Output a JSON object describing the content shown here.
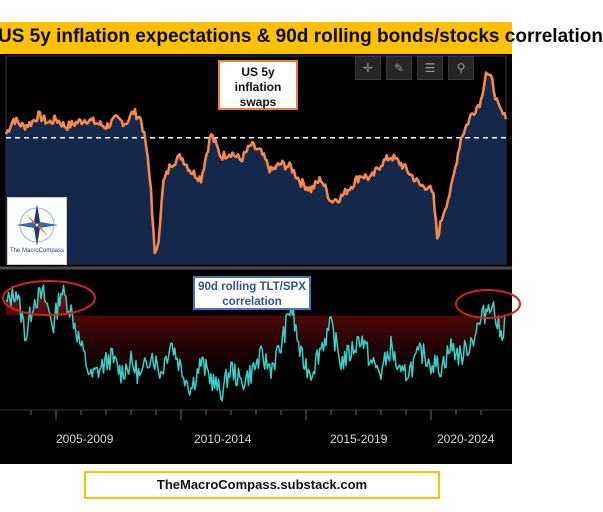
{
  "title": "US 5y inflation expectations & 90d rolling bonds/stocks correlation",
  "callouts": {
    "top": [
      "US 5y",
      "inflation",
      "swaps"
    ],
    "bottom": [
      "90d rolling TLT/SPX",
      "correlation"
    ]
  },
  "toolbar": {
    "icons": [
      "crosshair-icon",
      "pencil-icon",
      "table-icon",
      "zoom-icon"
    ]
  },
  "logo": {
    "text": "The MacroCompass"
  },
  "footer": "TheMacroCompass.substack.com",
  "colors": {
    "title_bg": "#ffc000",
    "inflation_line": "#f4894a",
    "inflation_fill": "#13284a",
    "correlation_line": "#35d0c8",
    "correlation_fill_top": "#8c1010",
    "highlight_circle": "#d62020",
    "callout_top_border": "#ed7d31",
    "callout_bottom_border": "#4472c4",
    "footer_border": "#ffc000"
  },
  "chart_data": [
    {
      "type": "area",
      "series": [
        {
          "name": "US 5y inflation swaps",
          "x": [
            2003.0,
            2003.3,
            2003.7,
            2004.0,
            2004.3,
            2004.7,
            2005.0,
            2005.4,
            2005.8,
            2006.2,
            2006.6,
            2007.0,
            2007.4,
            2007.8,
            2008.1,
            2008.4,
            2008.6,
            2008.8,
            2008.95,
            2009.1,
            2009.3,
            2009.6,
            2010.0,
            2010.4,
            2010.8,
            2011.2,
            2011.6,
            2012.0,
            2012.4,
            2012.8,
            2013.2,
            2013.6,
            2014.0,
            2014.4,
            2014.8,
            2015.2,
            2015.6,
            2016.0,
            2016.4,
            2016.8,
            2017.2,
            2017.6,
            2018.0,
            2018.4,
            2018.8,
            2019.2,
            2019.6,
            2019.9,
            2020.1,
            2020.25,
            2020.5,
            2020.8,
            2021.2,
            2021.6,
            2022.0,
            2022.2,
            2022.45,
            2022.7,
            2023.0
          ],
          "values": [
            2.35,
            2.55,
            2.45,
            2.5,
            2.6,
            2.5,
            2.55,
            2.45,
            2.5,
            2.55,
            2.5,
            2.45,
            2.55,
            2.5,
            2.65,
            2.55,
            2.2,
            1.6,
            0.7,
            0.95,
            1.7,
            1.95,
            2.05,
            1.85,
            1.75,
            2.35,
            2.05,
            2.1,
            2.0,
            2.2,
            2.1,
            1.85,
            1.95,
            1.9,
            1.7,
            1.6,
            1.75,
            1.45,
            1.5,
            1.65,
            1.8,
            1.75,
            1.95,
            2.05,
            1.95,
            1.8,
            1.65,
            1.65,
            1.5,
            0.95,
            1.3,
            1.6,
            2.3,
            2.6,
            2.8,
            3.2,
            3.05,
            2.7,
            2.55
          ]
        }
      ],
      "reference_line": 2.3,
      "ylim": [
        0.6,
        3.4
      ]
    },
    {
      "type": "area",
      "series": [
        {
          "name": "90d rolling TLT/SPX correlation",
          "x": [
            2003.0,
            2003.4,
            2003.8,
            2004.1,
            2004.5,
            2004.9,
            2005.2,
            2005.6,
            2006.0,
            2006.4,
            2006.8,
            2007.2,
            2007.6,
            2008.0,
            2008.4,
            2008.8,
            2009.2,
            2009.6,
            2010.0,
            2010.4,
            2010.8,
            2011.2,
            2011.6,
            2012.0,
            2012.4,
            2012.8,
            2013.2,
            2013.6,
            2014.0,
            2014.4,
            2014.8,
            2015.2,
            2015.6,
            2016.0,
            2016.4,
            2016.8,
            2017.2,
            2017.6,
            2018.0,
            2018.4,
            2018.8,
            2019.2,
            2019.6,
            2020.0,
            2020.4,
            2020.8,
            2021.2,
            2021.6,
            2022.0,
            2022.4,
            2022.8,
            2023.0
          ],
          "values": [
            0.1,
            0.25,
            -0.2,
            0.15,
            0.2,
            -0.1,
            0.25,
            0.05,
            -0.3,
            -0.6,
            -0.5,
            -0.4,
            -0.55,
            -0.45,
            -0.6,
            -0.35,
            -0.55,
            -0.25,
            -0.5,
            -0.7,
            -0.45,
            -0.6,
            -0.75,
            -0.5,
            -0.65,
            -0.55,
            -0.4,
            -0.5,
            -0.3,
            0.1,
            -0.4,
            -0.55,
            -0.3,
            -0.1,
            -0.45,
            -0.35,
            -0.2,
            -0.45,
            -0.55,
            -0.3,
            -0.6,
            -0.5,
            -0.35,
            -0.45,
            -0.5,
            -0.3,
            -0.4,
            -0.25,
            -0.05,
            0.15,
            -0.2,
            0.0
          ]
        }
      ],
      "fill_level": 0.0,
      "ylim": [
        -0.85,
        0.4
      ]
    }
  ],
  "x_axis": {
    "labels": [
      "2005-2009",
      "2010-2014",
      "2015-2019",
      "2020-2024"
    ]
  }
}
